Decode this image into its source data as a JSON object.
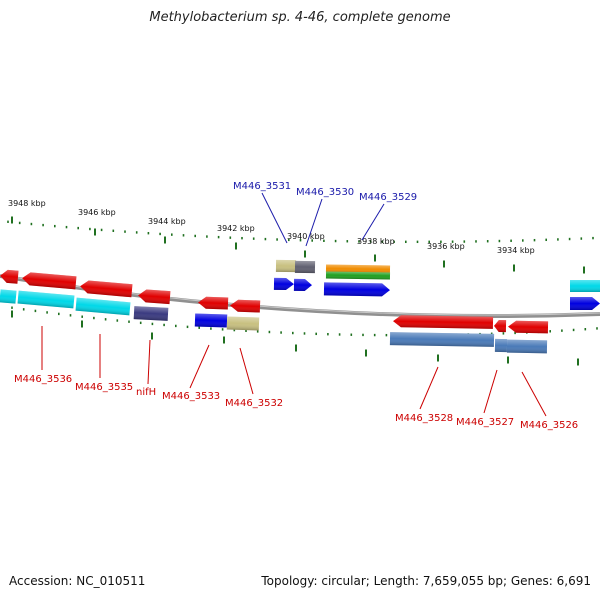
{
  "title": "Methylobacterium sp. 4-46, complete genome",
  "footer": {
    "accession": "Accession: NC_010511",
    "summary": "Topology: circular; Length: 7,659,055 bp; Genes: 6,691"
  },
  "scale_labels": [
    "3948 kbp",
    "3946 kbp",
    "3944 kbp",
    "3942 kbp",
    "3940 kbp",
    "3938 kbp",
    "3936 kbp",
    "3934 kbp"
  ],
  "gene_labels": {
    "top": [
      "M446_3531",
      "M446_3530",
      "M446_3529"
    ],
    "bottom": [
      "M446_3536",
      "M446_3535",
      "nifH",
      "M446_3533",
      "M446_3532",
      "M446_3528",
      "M446_3527",
      "M446_3526"
    ]
  },
  "colors": {
    "cds": "#e00000",
    "cyan": "#00d8e8",
    "blue": "#0000e0",
    "khaki": "#c8c080",
    "gray": "#606070",
    "navy": "#3a3a80",
    "steel": "#4a7ab8",
    "orange": "#f08c00",
    "green": "#20a020",
    "tick": "#207020",
    "backbone": "#888888",
    "label_red": "#cc0000",
    "label_blue": "#1a1aaa"
  }
}
